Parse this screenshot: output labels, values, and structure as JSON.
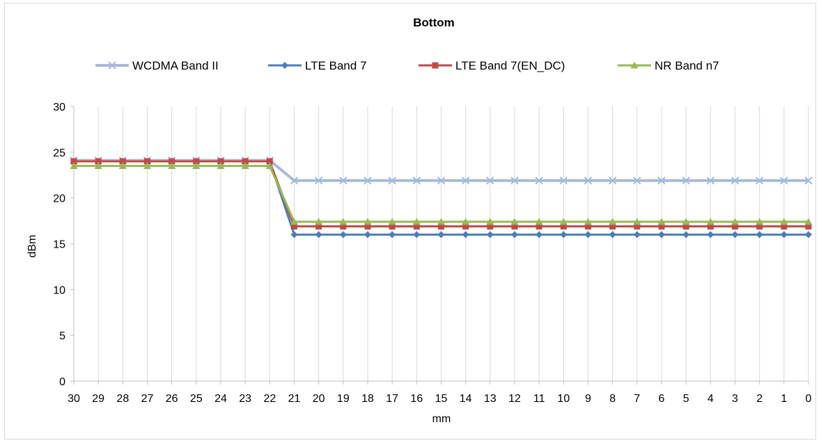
{
  "chart_data": {
    "type": "line",
    "title": "Bottom",
    "xlabel": "mm",
    "ylabel": "dBm",
    "ylim": [
      0,
      30
    ],
    "yticks": [
      0,
      5,
      10,
      15,
      20,
      25,
      30
    ],
    "grid": "vertical",
    "legend_position": "top",
    "categories": [
      "30",
      "29",
      "28",
      "27",
      "26",
      "25",
      "24",
      "23",
      "22",
      "21",
      "20",
      "19",
      "18",
      "17",
      "16",
      "15",
      "14",
      "13",
      "12",
      "11",
      "10",
      "9",
      "8",
      "7",
      "6",
      "5",
      "4",
      "3",
      "2",
      "1",
      "0"
    ],
    "series": [
      {
        "name": "WCDMA Band II",
        "color": "#a6b9d8",
        "marker": "x",
        "values": [
          24.1,
          24.1,
          24.1,
          24.1,
          24.1,
          24.1,
          24.1,
          24.1,
          24.1,
          21.9,
          21.9,
          21.9,
          21.9,
          21.9,
          21.9,
          21.9,
          21.9,
          21.9,
          21.9,
          21.9,
          21.9,
          21.9,
          21.9,
          21.9,
          21.9,
          21.9,
          21.9,
          21.9,
          21.9,
          21.9,
          21.9
        ]
      },
      {
        "name": "LTE Band 7",
        "color": "#4a7ebb",
        "marker": "diamond",
        "values": [
          24.0,
          24.0,
          24.0,
          24.0,
          24.0,
          24.0,
          24.0,
          24.0,
          24.0,
          16.0,
          16.0,
          16.0,
          16.0,
          16.0,
          16.0,
          16.0,
          16.0,
          16.0,
          16.0,
          16.0,
          16.0,
          16.0,
          16.0,
          16.0,
          16.0,
          16.0,
          16.0,
          16.0,
          16.0,
          16.0,
          16.0
        ]
      },
      {
        "name": "LTE Band 7(EN_DC)",
        "color": "#be4b48",
        "marker": "square",
        "values": [
          24.0,
          24.0,
          24.0,
          24.0,
          24.0,
          24.0,
          24.0,
          24.0,
          24.0,
          16.9,
          16.9,
          16.9,
          16.9,
          16.9,
          16.9,
          16.9,
          16.9,
          16.9,
          16.9,
          16.9,
          16.9,
          16.9,
          16.9,
          16.9,
          16.9,
          16.9,
          16.9,
          16.9,
          16.9,
          16.9,
          16.9
        ]
      },
      {
        "name": "NR Band n7",
        "color": "#98b954",
        "marker": "triangle",
        "values": [
          23.5,
          23.5,
          23.5,
          23.5,
          23.5,
          23.5,
          23.5,
          23.5,
          23.5,
          17.4,
          17.4,
          17.4,
          17.4,
          17.4,
          17.4,
          17.4,
          17.4,
          17.4,
          17.4,
          17.4,
          17.4,
          17.4,
          17.4,
          17.4,
          17.4,
          17.4,
          17.4,
          17.4,
          17.4,
          17.4,
          17.4
        ]
      }
    ]
  }
}
